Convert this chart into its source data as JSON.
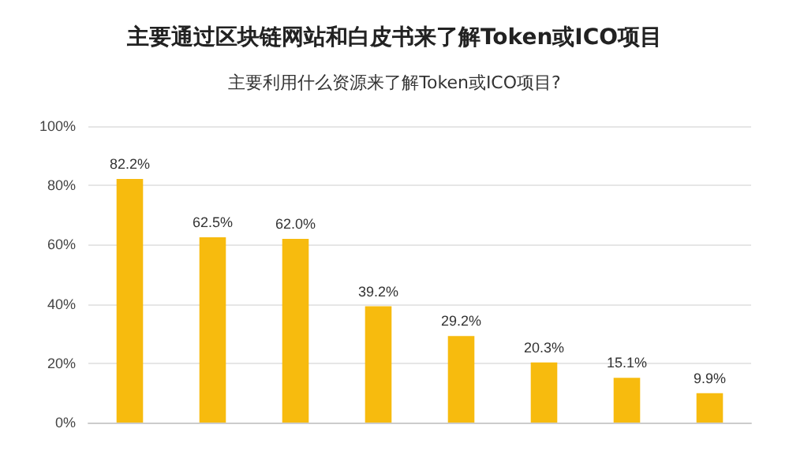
{
  "chart_data": {
    "type": "bar",
    "title": "主要通过区块链网站和白皮书来了解Token或ICO项目",
    "subtitle": "主要利用什么资源来了解Token或ICO项目?",
    "categories": [
      null,
      null,
      null,
      null,
      null,
      null,
      null,
      null
    ],
    "values": [
      82.2,
      62.5,
      62.0,
      39.2,
      29.2,
      20.3,
      15.1,
      9.9
    ],
    "value_labels": [
      "82.2%",
      "62.5%",
      "62.0%",
      "39.2%",
      "29.2%",
      "20.3%",
      "15.1%",
      "9.9%"
    ],
    "color": "#f7bb0e",
    "ylim": [
      0,
      100
    ],
    "yticks": [
      {
        "value": 0,
        "label": "0%"
      },
      {
        "value": 20,
        "label": "20%"
      },
      {
        "value": 40,
        "label": "40%"
      },
      {
        "value": 60,
        "label": "60%"
      },
      {
        "value": 80,
        "label": "80%"
      },
      {
        "value": 100,
        "label": "100%"
      }
    ],
    "grid": "y"
  }
}
